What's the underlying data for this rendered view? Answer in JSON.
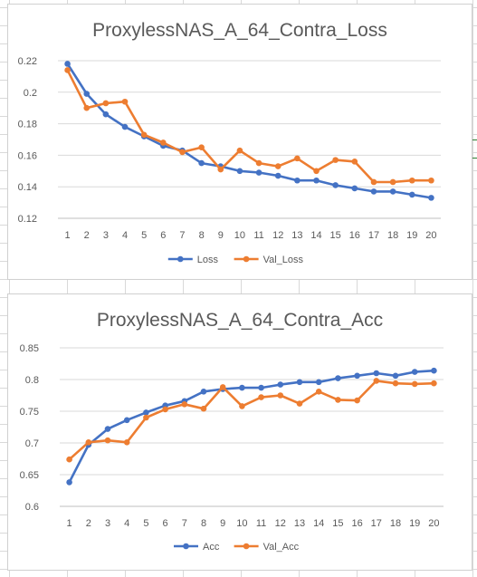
{
  "chart_data": [
    {
      "type": "line",
      "title": "ProxylessNAS_A_64_Contra_Loss",
      "xlabel": "",
      "ylabel": "",
      "x": [
        1,
        2,
        3,
        4,
        5,
        6,
        7,
        8,
        9,
        10,
        11,
        12,
        13,
        14,
        15,
        16,
        17,
        18,
        19,
        20
      ],
      "ylim": [
        0.12,
        0.22
      ],
      "yticks": [
        "0.22",
        "0.2",
        "0.18",
        "0.16",
        "0.14",
        "0.12"
      ],
      "ytick_values": [
        0.22,
        0.2,
        0.18,
        0.16,
        0.14,
        0.12
      ],
      "grid": "horizontal",
      "legend": "bottom",
      "series": [
        {
          "name": "Loss",
          "color": "#4472c4",
          "values": [
            0.218,
            0.199,
            0.186,
            0.178,
            0.172,
            0.166,
            0.163,
            0.155,
            0.153,
            0.15,
            0.149,
            0.147,
            0.144,
            0.144,
            0.141,
            0.139,
            0.137,
            0.137,
            0.135,
            0.133
          ]
        },
        {
          "name": "Val_Loss",
          "color": "#ed7d31",
          "values": [
            0.214,
            0.19,
            0.193,
            0.194,
            0.173,
            0.168,
            0.162,
            0.165,
            0.151,
            0.163,
            0.155,
            0.153,
            0.158,
            0.15,
            0.157,
            0.156,
            0.143,
            0.143,
            0.144,
            0.144
          ]
        }
      ]
    },
    {
      "type": "line",
      "title": "ProxylessNAS_A_64_Contra_Acc",
      "xlabel": "",
      "ylabel": "",
      "x": [
        1,
        2,
        3,
        4,
        5,
        6,
        7,
        8,
        9,
        10,
        11,
        12,
        13,
        14,
        15,
        16,
        17,
        18,
        19,
        20
      ],
      "ylim": [
        0.6,
        0.85
      ],
      "yticks": [
        "0.85",
        "0.8",
        "0.75",
        "0.7",
        "0.65",
        "0.6"
      ],
      "ytick_values": [
        0.85,
        0.8,
        0.75,
        0.7,
        0.65,
        0.6
      ],
      "grid": "horizontal",
      "legend": "bottom",
      "series": [
        {
          "name": "Acc",
          "color": "#4472c4",
          "values": [
            0.638,
            0.697,
            0.722,
            0.736,
            0.748,
            0.759,
            0.766,
            0.781,
            0.785,
            0.787,
            0.787,
            0.792,
            0.796,
            0.796,
            0.802,
            0.806,
            0.81,
            0.806,
            0.812,
            0.814
          ]
        },
        {
          "name": "Val_Acc",
          "color": "#ed7d31",
          "values": [
            0.674,
            0.701,
            0.704,
            0.701,
            0.74,
            0.753,
            0.761,
            0.754,
            0.788,
            0.758,
            0.772,
            0.775,
            0.762,
            0.781,
            0.768,
            0.767,
            0.798,
            0.794,
            0.793,
            0.794
          ]
        }
      ]
    }
  ]
}
